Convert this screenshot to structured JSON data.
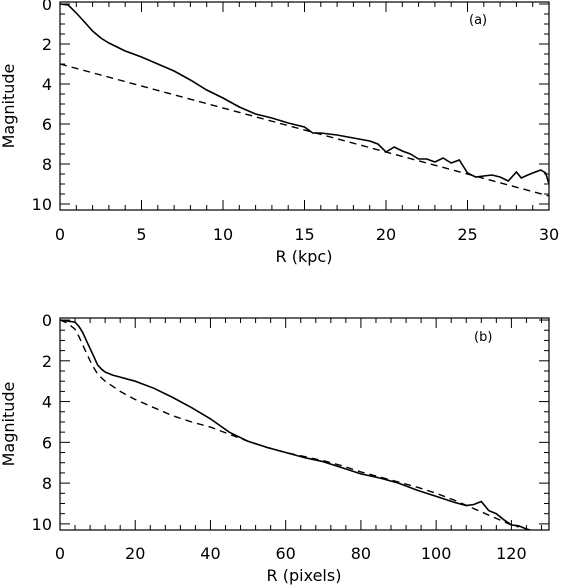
{
  "chart_data": [
    {
      "type": "line",
      "panel_label": "(a)",
      "xlabel": "R (kpc)",
      "ylabel": "Magnitude",
      "xlim": [
        0,
        30
      ],
      "ylim": [
        10.3,
        -0.1
      ],
      "y_inverted": true,
      "xticks": [
        0,
        5,
        10,
        15,
        20,
        25,
        30
      ],
      "yticks": [
        0,
        2,
        4,
        6,
        8,
        10
      ],
      "series": [
        {
          "style": "solid",
          "x": [
            0,
            0.5,
            1.0,
            1.5,
            2.0,
            2.5,
            3.0,
            4.0,
            5.0,
            6.0,
            7.0,
            8.0,
            9.0,
            10.0,
            11.0,
            12.0,
            13.0,
            14.0,
            15.0,
            15.5,
            16.0,
            17.0,
            18.0,
            19.0,
            19.5,
            20.0,
            20.5,
            21.0,
            21.5,
            22.0,
            22.5,
            23.0,
            23.5,
            24.0,
            24.5,
            25.0,
            25.5,
            26.0,
            26.5,
            27.0,
            27.5,
            28.0,
            28.3,
            28.7,
            29.0,
            29.5,
            29.8,
            30.0
          ],
          "y": [
            0.0,
            0.05,
            0.45,
            0.9,
            1.35,
            1.7,
            1.95,
            2.35,
            2.65,
            3.0,
            3.35,
            3.8,
            4.3,
            4.7,
            5.15,
            5.5,
            5.7,
            5.95,
            6.15,
            6.45,
            6.45,
            6.55,
            6.7,
            6.85,
            7.0,
            7.4,
            7.15,
            7.35,
            7.5,
            7.75,
            7.75,
            7.9,
            7.7,
            7.95,
            7.8,
            8.45,
            8.65,
            8.6,
            8.55,
            8.65,
            8.85,
            8.4,
            8.7,
            8.55,
            8.45,
            8.3,
            8.45,
            9.0
          ]
        },
        {
          "style": "dashed",
          "x": [
            0,
            30
          ],
          "y": [
            3.0,
            9.6
          ]
        }
      ]
    },
    {
      "type": "line",
      "panel_label": "(b)",
      "xlabel": "R (pixels)",
      "ylabel": "Magnitude",
      "xlim": [
        0,
        130
      ],
      "ylim": [
        10.3,
        -0.1
      ],
      "y_inverted": true,
      "xticks": [
        0,
        20,
        40,
        60,
        80,
        100,
        120
      ],
      "yticks": [
        0,
        2,
        4,
        6,
        8,
        10
      ],
      "series": [
        {
          "style": "solid",
          "x": [
            0,
            2,
            4,
            5,
            6,
            7,
            8,
            9,
            10,
            11,
            12,
            14,
            16,
            18,
            20,
            25,
            30,
            35,
            40,
            45,
            50,
            55,
            60,
            65,
            70,
            75,
            80,
            85,
            90,
            95,
            100,
            105,
            108,
            110,
            112,
            114,
            116,
            118,
            120,
            122,
            124,
            125
          ],
          "y": [
            0.0,
            0.05,
            0.1,
            0.3,
            0.6,
            1.0,
            1.4,
            1.8,
            2.2,
            2.4,
            2.55,
            2.7,
            2.8,
            2.9,
            3.0,
            3.35,
            3.8,
            4.3,
            4.85,
            5.5,
            5.95,
            6.25,
            6.5,
            6.75,
            6.95,
            7.25,
            7.55,
            7.75,
            8.0,
            8.35,
            8.65,
            8.95,
            9.1,
            9.05,
            8.9,
            9.35,
            9.5,
            9.8,
            10.05,
            10.1,
            10.25,
            10.3
          ]
        },
        {
          "style": "dashed",
          "x": [
            0,
            2,
            4,
            5,
            6,
            7,
            8,
            9,
            10,
            12,
            14,
            16,
            18,
            20,
            25,
            30,
            35,
            40,
            45,
            50,
            55,
            60,
            65,
            70,
            75,
            80,
            85,
            90,
            95,
            100,
            105,
            110,
            115,
            120,
            122
          ],
          "y": [
            0.0,
            0.15,
            0.45,
            0.8,
            1.2,
            1.6,
            2.0,
            2.35,
            2.65,
            3.0,
            3.25,
            3.5,
            3.7,
            3.9,
            4.3,
            4.7,
            5.0,
            5.25,
            5.6,
            5.95,
            6.25,
            6.5,
            6.7,
            6.9,
            7.15,
            7.45,
            7.7,
            7.95,
            8.2,
            8.5,
            8.85,
            9.25,
            9.65,
            10.05,
            10.15
          ]
        }
      ]
    }
  ]
}
